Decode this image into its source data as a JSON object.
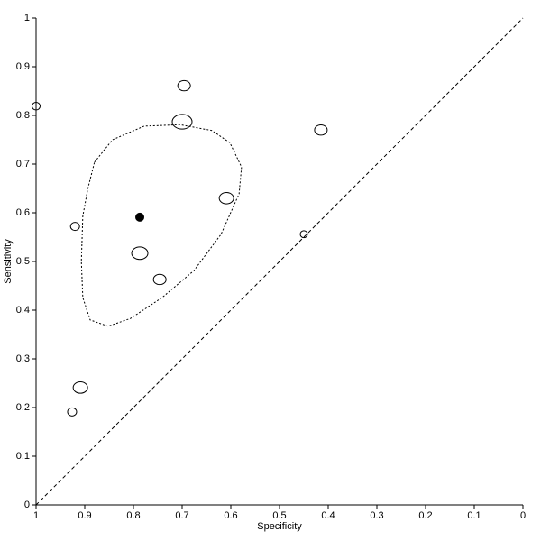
{
  "chart_data": {
    "type": "sroc",
    "x_label": "Specificity",
    "y_label": "Sensitivity",
    "xlim": [
      1,
      0
    ],
    "ylim": [
      0,
      1
    ],
    "xticks": [
      1,
      0.9,
      0.8,
      0.7,
      0.6,
      0.5,
      0.4,
      0.3,
      0.2,
      0.1,
      0
    ],
    "yticks": [
      0,
      0.1,
      0.2,
      0.3,
      0.4,
      0.5,
      0.6,
      0.7,
      0.8,
      0.9,
      1
    ],
    "series": [
      {
        "x": [
          1.0,
          0.696,
          0.7,
          0.415,
          0.609,
          0.92,
          0.45,
          0.787,
          0.746,
          0.909,
          0.926
        ],
        "values": [
          0.819,
          0.861,
          0.787,
          0.77,
          0.63,
          0.572,
          0.556,
          0.517,
          0.463,
          0.241,
          0.191
        ],
        "sizes": [
          4.5,
          7,
          11,
          7,
          8,
          5,
          4,
          9,
          7,
          8,
          5
        ]
      }
    ],
    "summary": {
      "x": 0.787,
      "value": 0.591
    },
    "confidence_region": {
      "x": [
        0.88,
        0.843,
        0.778,
        0.704,
        0.639,
        0.602,
        0.578,
        0.583,
        0.62,
        0.676,
        0.741,
        0.806,
        0.852,
        0.889,
        0.904,
        0.907,
        0.904,
        0.894
      ],
      "values": [
        0.704,
        0.75,
        0.778,
        0.781,
        0.769,
        0.744,
        0.694,
        0.639,
        0.556,
        0.481,
        0.426,
        0.383,
        0.367,
        0.38,
        0.426,
        0.5,
        0.593,
        0.648
      ]
    }
  }
}
